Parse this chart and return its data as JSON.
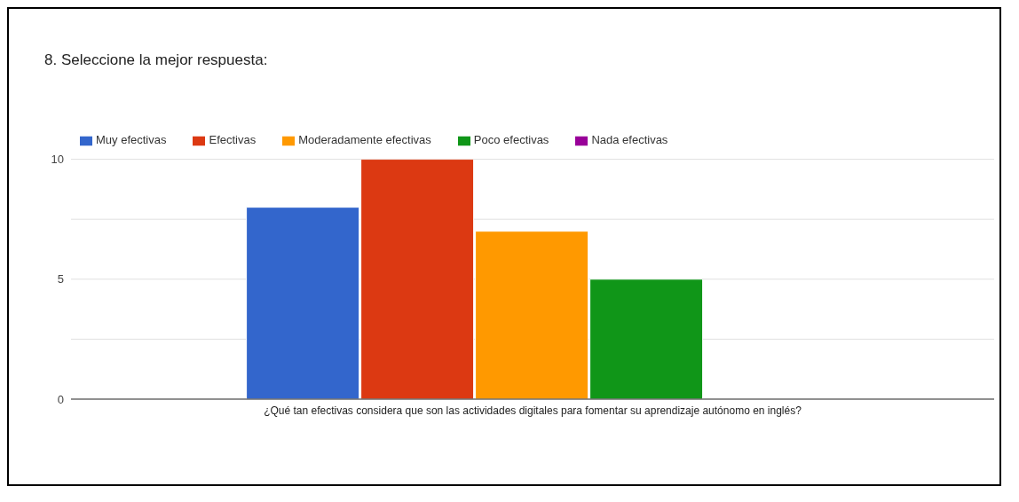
{
  "chart_data": {
    "type": "bar",
    "title": "8. Seleccione la mejor respuesta:",
    "categories": [
      "¿Qué tan efectivas considera que son las actividades digitales para fomentar su aprendizaje autónomo en inglés?"
    ],
    "series": [
      {
        "name": "Muy efectivas",
        "color": "#3366cc",
        "values": [
          8
        ]
      },
      {
        "name": "Efectivas",
        "color": "#dc3912",
        "values": [
          10
        ]
      },
      {
        "name": "Moderadamente efectivas",
        "color": "#ff9900",
        "values": [
          7
        ]
      },
      {
        "name": "Poco efectivas",
        "color": "#109618",
        "values": [
          5
        ]
      },
      {
        "name": "Nada efectivas",
        "color": "#990099",
        "values": [
          0
        ]
      }
    ],
    "ylim": [
      0,
      10
    ],
    "yticks": [
      0,
      {
        "value": 2.5,
        "label": null
      },
      5,
      {
        "value": 7.5,
        "label": null
      },
      10
    ],
    "grid": "y",
    "legend": "top"
  }
}
